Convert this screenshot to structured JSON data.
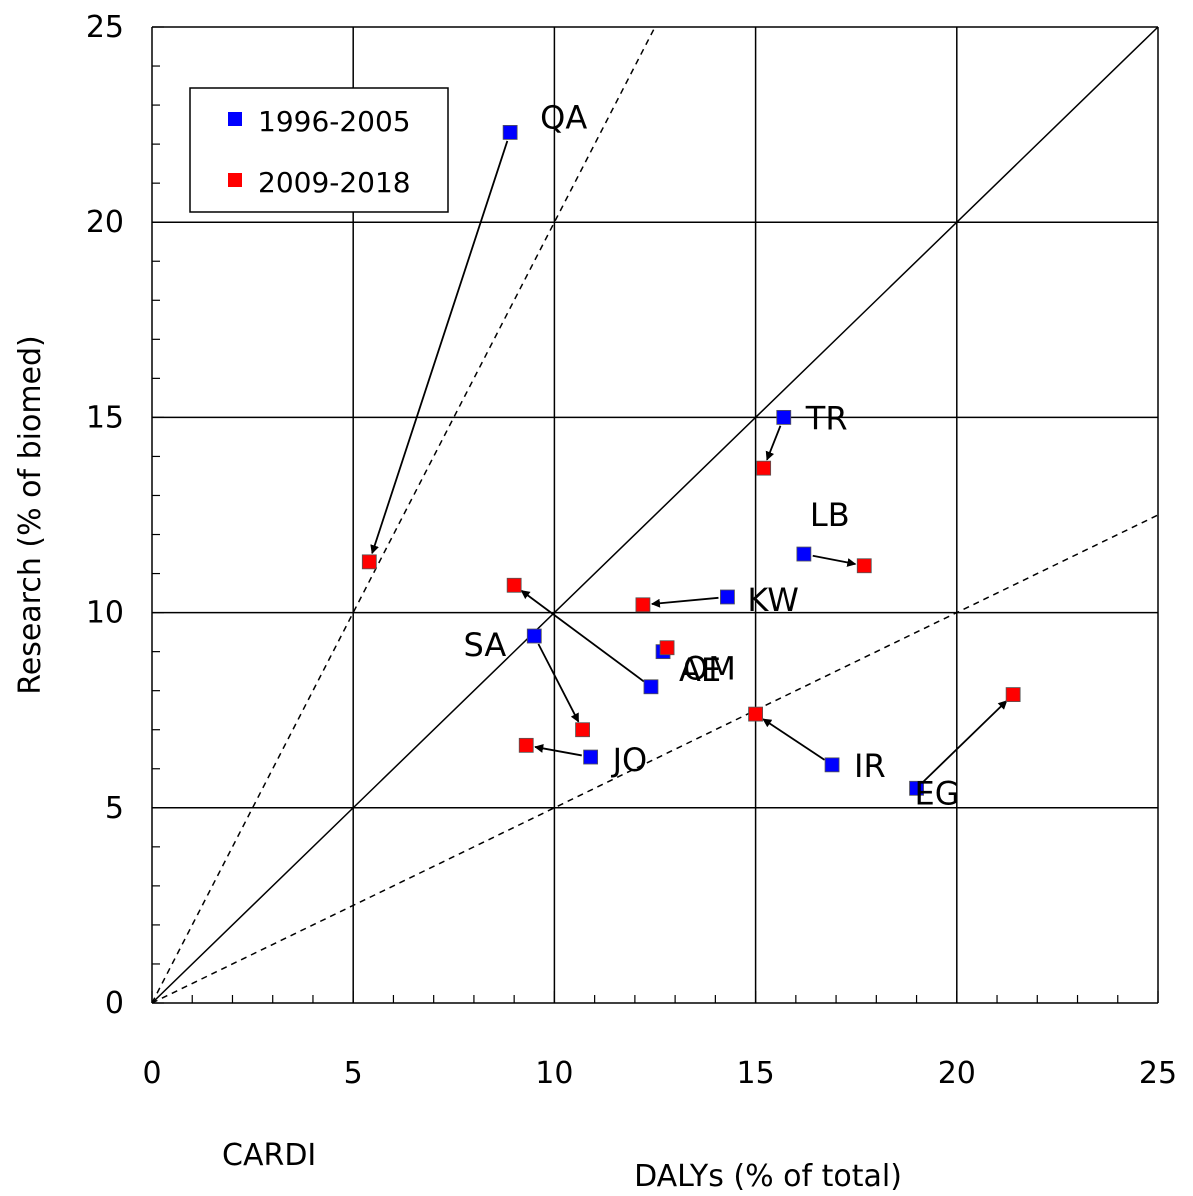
{
  "chart_data": {
    "type": "scatter",
    "corner_label": "CARDI",
    "xlabel": "DALYs (% of total)",
    "ylabel": "Research (% of biomed)",
    "xlim": [
      0,
      25
    ],
    "ylim": [
      0,
      25
    ],
    "x_ticks": [
      0,
      5,
      10,
      15,
      20,
      25
    ],
    "y_ticks": [
      0,
      5,
      10,
      15,
      20,
      25
    ],
    "grid": true,
    "legend_position": "top-left",
    "reference_lines": [
      {
        "slope": 1,
        "style": "solid"
      },
      {
        "slope": 2,
        "style": "dashed"
      },
      {
        "slope": 0.5,
        "style": "dashed"
      }
    ],
    "series": [
      {
        "name": "1996-2005",
        "color": "#0000ff"
      },
      {
        "name": "2009-2018",
        "color": "#ff0000"
      }
    ],
    "countries": [
      {
        "code": "QA",
        "p1": [
          8.9,
          22.3
        ],
        "p2": [
          5.4,
          11.3
        ]
      },
      {
        "code": "TR",
        "p1": [
          15.7,
          15.0
        ],
        "p2": [
          15.2,
          13.7
        ]
      },
      {
        "code": "LB",
        "p1": [
          16.2,
          11.5
        ],
        "p2": [
          17.7,
          11.2
        ]
      },
      {
        "code": "KW",
        "p1": [
          14.3,
          10.4
        ],
        "p2": [
          12.2,
          10.2
        ]
      },
      {
        "code": "OM",
        "p1": [
          12.7,
          9.0
        ],
        "p2": [
          12.8,
          9.1
        ]
      },
      {
        "code": "SA",
        "p1": [
          9.5,
          9.4
        ],
        "p2": [
          10.7,
          7.0
        ]
      },
      {
        "code": "AE",
        "p1": [
          12.4,
          8.1
        ],
        "p2": [
          9.0,
          10.7
        ]
      },
      {
        "code": "JO",
        "p1": [
          10.9,
          6.3
        ],
        "p2": [
          9.3,
          6.6
        ]
      },
      {
        "code": "IR",
        "p1": [
          16.9,
          6.1
        ],
        "p2": [
          15.0,
          7.4
        ]
      },
      {
        "code": "EG",
        "p1": [
          19.0,
          5.5
        ],
        "p2": [
          21.4,
          7.9
        ]
      }
    ]
  }
}
